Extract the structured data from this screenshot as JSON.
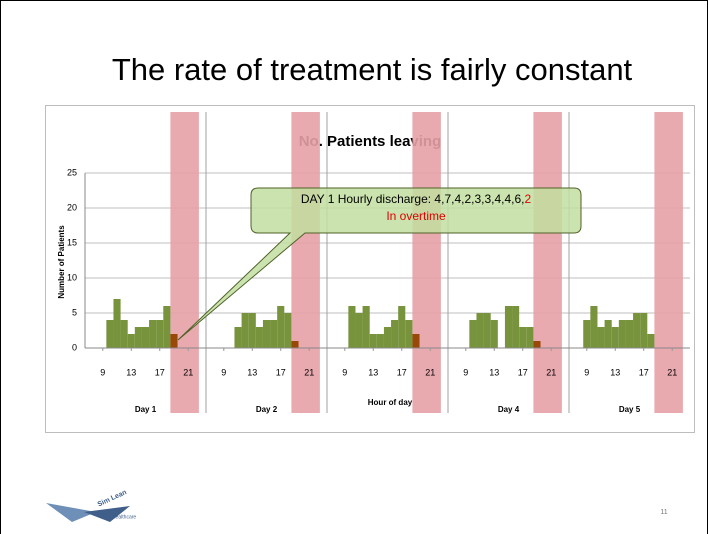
{
  "slide": {
    "title": "The rate of treatment is fairly constant",
    "page_number": "11",
    "logo": [
      "Sim Lean",
      "Healthcare"
    ]
  },
  "chart_data": {
    "type": "bar",
    "title": "No. Patients leaving",
    "ylabel": "Number of Patients",
    "xlabel": "Hour of day",
    "ylim": [
      0,
      25
    ],
    "yticks": [
      0,
      5,
      10,
      15,
      20,
      25
    ],
    "xlim": [
      7,
      24
    ],
    "xticks": [
      9,
      13,
      17,
      21
    ],
    "grid": true,
    "bar_color": "#77933c",
    "overtime_color": "#984807",
    "shade_color": "#e6a0a6",
    "shade": [
      19,
      23
    ],
    "panels": [
      {
        "label": "Day 1",
        "x": [
          10,
          11,
          12,
          13,
          14,
          15,
          16,
          17,
          18,
          19
        ],
        "values": [
          4,
          7,
          4,
          2,
          3,
          3,
          4,
          4,
          6,
          2
        ]
      },
      {
        "label": "Day 2",
        "x": [
          11,
          12,
          13,
          14,
          15,
          16,
          17,
          18,
          19
        ],
        "values": [
          3,
          5,
          5,
          3,
          4,
          4,
          6,
          5,
          1
        ]
      },
      {
        "label": null,
        "x": [
          10,
          11,
          12,
          13,
          14,
          15,
          16,
          17,
          18,
          19
        ],
        "values": [
          6,
          5,
          6,
          2,
          2,
          3,
          4,
          6,
          4,
          2
        ]
      },
      {
        "label": "Day 4",
        "x": [
          10,
          11,
          12,
          13,
          15,
          16,
          17,
          18,
          19
        ],
        "values": [
          4,
          5,
          5,
          4,
          6,
          6,
          3,
          3,
          1
        ]
      },
      {
        "label": "Day 5",
        "x": [
          9,
          10,
          11,
          12,
          13,
          14,
          15,
          16,
          17,
          18
        ],
        "values": [
          4,
          6,
          3,
          4,
          3,
          4,
          4,
          5,
          5,
          2
        ]
      }
    ],
    "annotation": {
      "text": "DAY 1 Hourly discharge: 4,7,4,2,3,3,4,4,6,",
      "highlight": "2",
      "note": "In overtime"
    }
  }
}
